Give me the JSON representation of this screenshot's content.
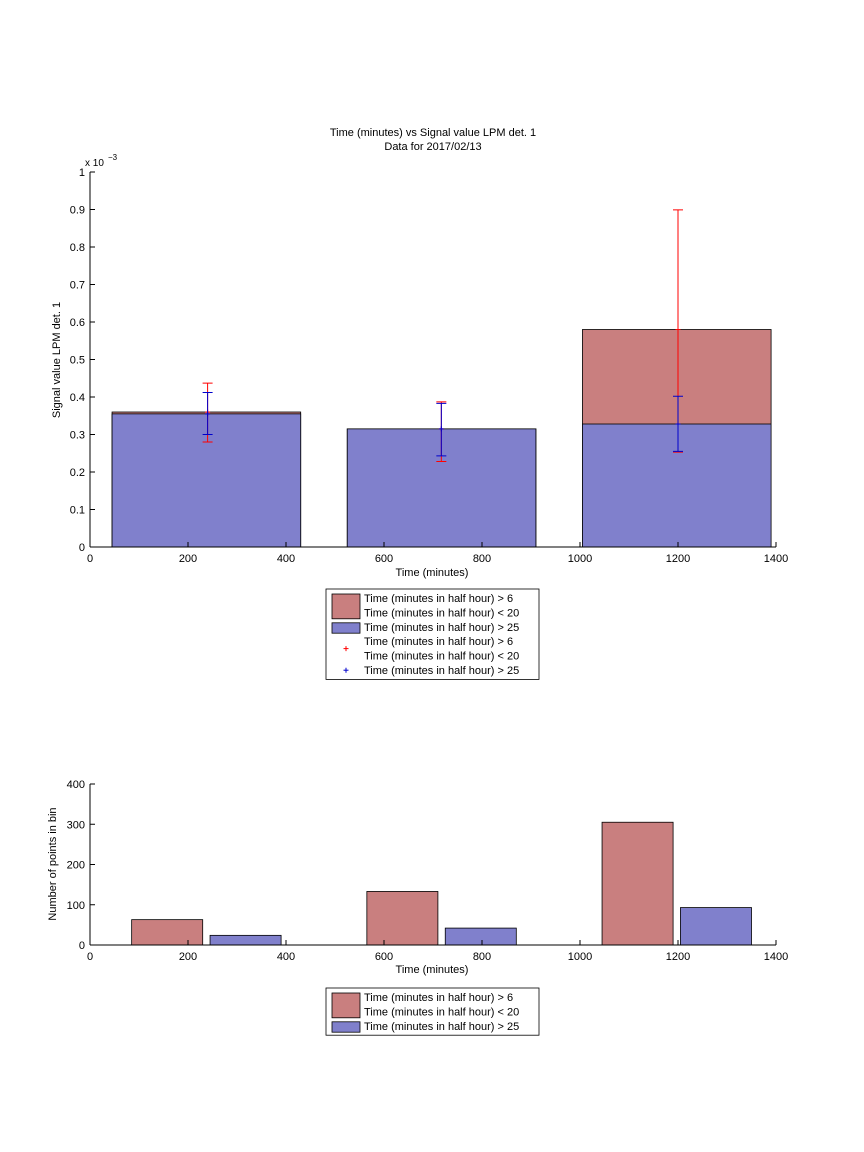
{
  "chart_data": [
    {
      "type": "bar",
      "title": "Time (minutes) vs Signal value LPM det. 1",
      "subtitle": "Data for 2017/02/13",
      "xlabel": "Time (minutes)",
      "ylabel": "Signal value LPM det. 1",
      "y_scale_label": "x 10",
      "y_scale_exponent": "−3",
      "xlim": [
        0,
        1400
      ],
      "ylim": [
        0,
        1
      ],
      "x_ticks": [
        0,
        200,
        400,
        600,
        800,
        1000,
        1200,
        1400
      ],
      "y_ticks": [
        0,
        0.1,
        0.2,
        0.3,
        0.4,
        0.5,
        0.6,
        0.7,
        0.8,
        0.9,
        1
      ],
      "bars": [
        {
          "x_start": 45,
          "x_end": 430,
          "series": [
            {
              "value": 0.36,
              "color": "#c97f7f"
            },
            {
              "value": 0.355,
              "color": "#8080cc"
            }
          ]
        },
        {
          "x_start": 525,
          "x_end": 910,
          "series": [
            {
              "value": 0.315,
              "color": "#c97f7f"
            },
            {
              "value": 0.315,
              "color": "#8080cc"
            }
          ]
        },
        {
          "x_start": 1005,
          "x_end": 1390,
          "series": [
            {
              "value": 0.58,
              "color": "#c97f7f"
            },
            {
              "value": 0.328,
              "color": "#8080cc"
            }
          ]
        }
      ],
      "error_bars": [
        {
          "x": 240,
          "low": 0.28,
          "high": 0.437,
          "center": 0.36,
          "color": "#ff0000"
        },
        {
          "x": 240,
          "low": 0.3,
          "high": 0.412,
          "center": 0.355,
          "color": "#0000cc"
        },
        {
          "x": 717,
          "low": 0.228,
          "high": 0.387,
          "center": 0.315,
          "color": "#ff0000"
        },
        {
          "x": 717,
          "low": 0.243,
          "high": 0.383,
          "center": 0.315,
          "color": "#0000cc"
        },
        {
          "x": 1200,
          "low": 0.253,
          "high": 0.899,
          "center": 0.58,
          "color": "#ff0000"
        },
        {
          "x": 1200,
          "low": 0.255,
          "high": 0.402,
          "center": 0.328,
          "color": "#0000cc"
        }
      ],
      "legend": {
        "placement": "bottom",
        "entries": [
          {
            "lines": [
              "Time (minutes in half hour) > 6",
              "Time (minutes in half hour) < 20"
            ],
            "kind": "patch",
            "color": "#c97f7f"
          },
          {
            "lines": [
              "Time (minutes in half hour) > 25"
            ],
            "kind": "patch",
            "color": "#8080cc"
          },
          {
            "lines": [
              "Time (minutes in half hour) > 6",
              "Time (minutes in half hour) < 20"
            ],
            "kind": "marker",
            "color": "#ff0000"
          },
          {
            "lines": [
              "Time (minutes in half hour) > 25"
            ],
            "kind": "marker",
            "color": "#0000cc"
          }
        ]
      }
    },
    {
      "type": "bar",
      "xlabel": "Time (minutes)",
      "ylabel": "Number of points in bin",
      "xlim": [
        0,
        1400
      ],
      "ylim": [
        0,
        400
      ],
      "x_ticks": [
        0,
        200,
        400,
        600,
        800,
        1000,
        1200,
        1400
      ],
      "y_ticks": [
        0,
        100,
        200,
        300,
        400
      ],
      "bars": [
        {
          "x_start": 85,
          "x_end": 230,
          "value": 63,
          "color": "#c97f7f"
        },
        {
          "x_start": 245,
          "x_end": 390,
          "value": 24,
          "color": "#8080cc"
        },
        {
          "x_start": 565,
          "x_end": 710,
          "value": 133,
          "color": "#c97f7f"
        },
        {
          "x_start": 725,
          "x_end": 870,
          "value": 42,
          "color": "#8080cc"
        },
        {
          "x_start": 1045,
          "x_end": 1190,
          "value": 305,
          "color": "#c97f7f"
        },
        {
          "x_start": 1205,
          "x_end": 1350,
          "value": 93,
          "color": "#8080cc"
        }
      ],
      "legend": {
        "placement": "bottom",
        "entries": [
          {
            "lines": [
              "Time (minutes in half hour) > 6",
              "Time (minutes in half hour) < 20"
            ],
            "kind": "patch",
            "color": "#c97f7f"
          },
          {
            "lines": [
              "Time (minutes in half hour) > 25"
            ],
            "kind": "patch",
            "color": "#8080cc"
          }
        ]
      }
    }
  ]
}
